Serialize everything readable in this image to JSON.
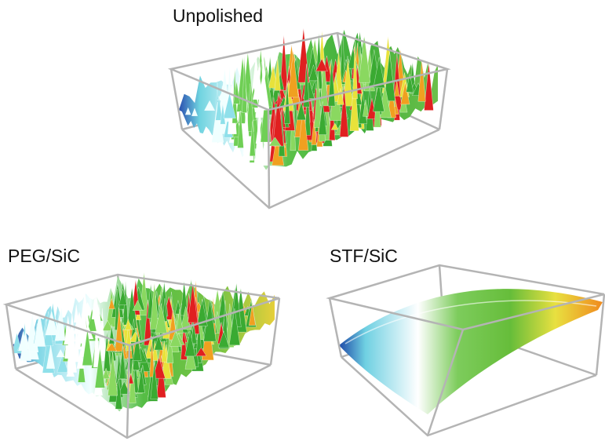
{
  "panels": [
    {
      "label": "Unpolished"
    },
    {
      "label": "PEG/SiC"
    },
    {
      "label": "STF/SiC"
    }
  ]
}
